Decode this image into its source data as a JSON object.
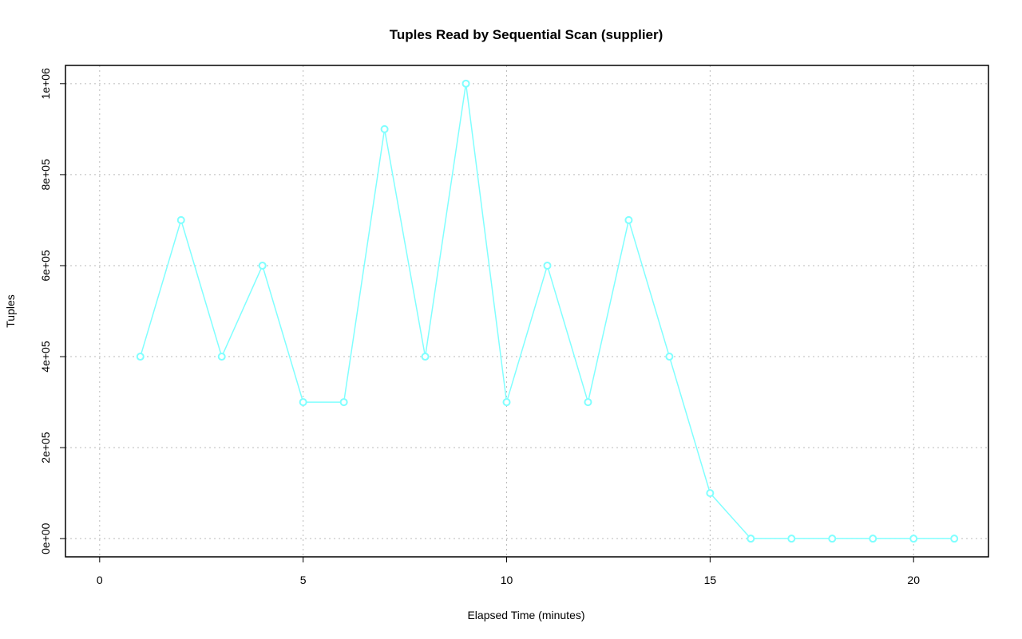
{
  "chart_data": {
    "type": "line",
    "title": "Tuples Read by Sequential Scan (supplier)",
    "xlabel": "Elapsed Time (minutes)",
    "ylabel": "Tuples",
    "x": [
      1,
      2,
      3,
      4,
      5,
      6,
      7,
      8,
      9,
      10,
      11,
      12,
      13,
      14,
      15,
      16,
      17,
      18,
      19,
      20,
      21
    ],
    "series": [
      {
        "values": [
          400000,
          700000,
          400000,
          600000,
          300000,
          300000,
          900000,
          400000,
          1000000,
          300000,
          600000,
          300000,
          700000,
          400000,
          100000,
          0,
          0,
          0,
          0,
          0,
          0
        ],
        "color": "#80ffff"
      }
    ],
    "xlim": [
      -0.84,
      21.84
    ],
    "ylim": [
      -40000,
      1040000
    ],
    "xticks": [
      0,
      5,
      10,
      15,
      20
    ],
    "xtick_labels": [
      "0",
      "5",
      "10",
      "15",
      "20"
    ],
    "yticks": [
      0,
      200000,
      400000,
      600000,
      800000,
      1000000
    ],
    "ytick_labels": [
      "0e+00",
      "2e+05",
      "4e+05",
      "6e+05",
      "8e+05",
      "1e+06"
    ],
    "grid": true,
    "markers": "open-circle"
  }
}
